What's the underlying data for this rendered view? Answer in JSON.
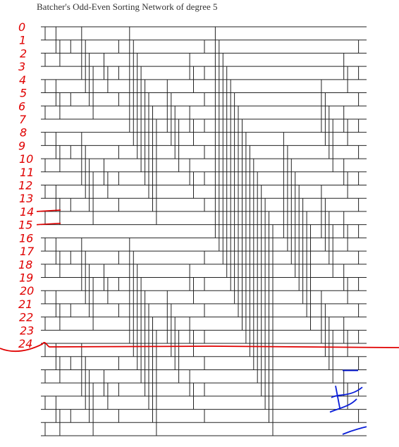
{
  "title": "Batcher's Odd-Even Sorting Network of degree 5",
  "colors": {
    "network": "#222222",
    "annotation": "#e00000",
    "annotation_blue": "#0a1ed8"
  },
  "network": {
    "wire_count": 32,
    "degree": 5
  },
  "annotations": {
    "row_numbers": [
      "0",
      "1",
      "2",
      "3",
      "4",
      "5",
      "6",
      "7",
      "8",
      "9",
      "10",
      "11",
      "12",
      "13",
      "14",
      "15",
      "16",
      "17",
      "18",
      "19",
      "20",
      "21",
      "22",
      "23",
      "24"
    ]
  }
}
